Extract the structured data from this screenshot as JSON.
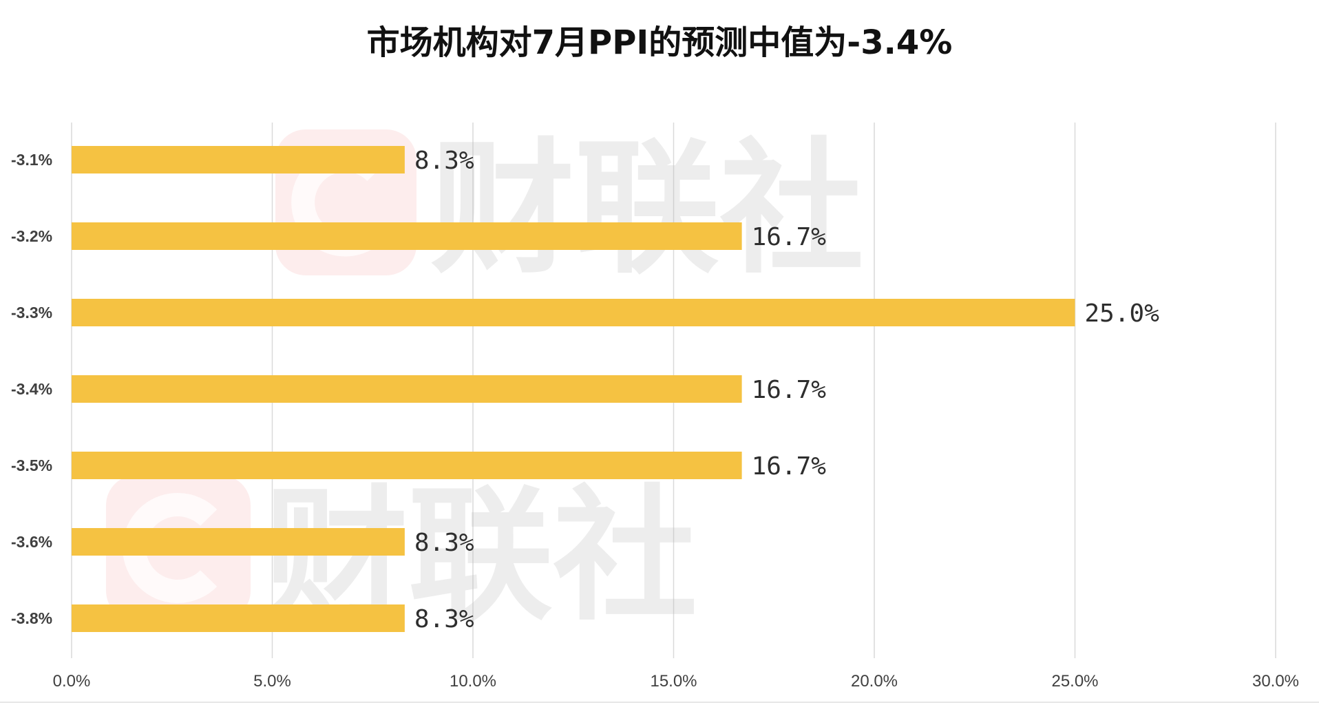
{
  "chart_data": {
    "type": "bar",
    "orientation": "horizontal",
    "title": "市场机构对7月PPI的预测中值为-3.4%",
    "categories": [
      "-3.1%",
      "-3.2%",
      "-3.3%",
      "-3.4%",
      "-3.5%",
      "-3.6%",
      "-3.8%"
    ],
    "values": [
      8.3,
      16.7,
      25.0,
      16.7,
      16.7,
      8.3,
      8.3
    ],
    "data_labels": [
      "8.3%",
      "16.7%",
      "25.0%",
      "16.7%",
      "16.7%",
      "8.3%",
      "8.3%"
    ],
    "xlim": [
      0,
      30
    ],
    "xticks": [
      "0.0%",
      "5.0%",
      "10.0%",
      "15.0%",
      "20.0%",
      "25.0%",
      "30.0%"
    ],
    "grid": "vertical",
    "legend": "none",
    "bar_color": "#F5C242"
  },
  "watermark": {
    "text": "财联社",
    "color": "#E8363C"
  }
}
